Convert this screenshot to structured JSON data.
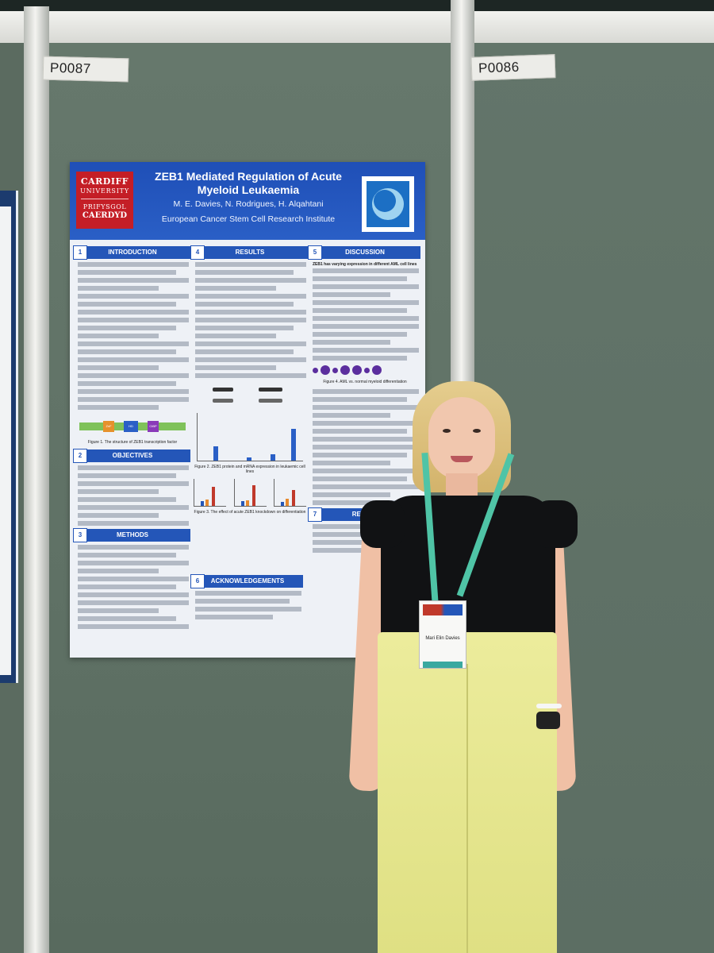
{
  "tags": {
    "left": "P0087",
    "right": "P0086"
  },
  "poster": {
    "university": {
      "line1": "CARDIFF",
      "line2": "UNIVERSITY",
      "line3": "PRIFYSGOL",
      "line4": "CAERDYD"
    },
    "title": "ZEB1 Mediated Regulation of Acute Myeloid Leukaemia",
    "authors": "M. E. Davies, N. Rodrigues, H. Alqahtani",
    "institute": "European Cancer Stem Cell Research Institute",
    "sections": [
      {
        "num": "1",
        "heading": "INTRODUCTION"
      },
      {
        "num": "2",
        "heading": "OBJECTIVES"
      },
      {
        "num": "3",
        "heading": "METHODS"
      },
      {
        "num": "4",
        "heading": "RESULTS"
      },
      {
        "num": "5",
        "heading": "DISCUSSION"
      },
      {
        "num": "6",
        "heading": "ACKNOWLEDGEMENTS"
      },
      {
        "num": "7",
        "heading": "REFERE"
      }
    ],
    "captions": {
      "fig1": "Figure 1. The structure of ZEB1 transcription factor",
      "fig2": "Figure 2. ZEB1 protein and mRNA expression in leukaemic cell lines",
      "fig3": "Figure 3. The effect of acute ZEB1 knockdown on differentiation",
      "fig4": "Figure 4. AML vs. normal myeloid differentiation"
    },
    "discussion_sub": "ZEB1 has varying expression in different AML cell lines",
    "zeb_domains": [
      "ZnF",
      "HD",
      "CtBP"
    ]
  },
  "badge": {
    "name": "Mari Elin Davies"
  },
  "colors": {
    "poster_blue": "#2456b8",
    "cardiff_red": "#c41e26",
    "board_green": "#5f6f62",
    "pants_yellow": "#e6e68f"
  }
}
